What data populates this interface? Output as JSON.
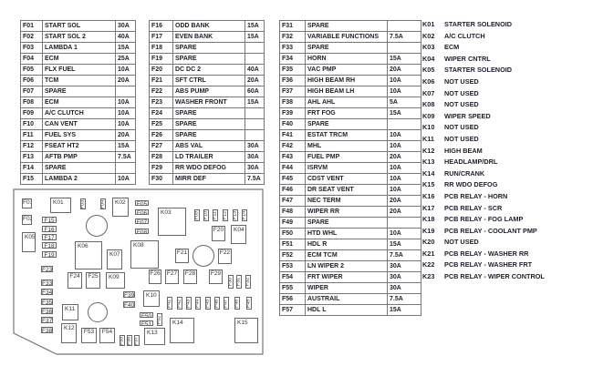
{
  "fuse_tables": [
    [
      [
        "F01",
        "START SOL",
        "30A"
      ],
      [
        "F02",
        "START SOL 2",
        "40A"
      ],
      [
        "F03",
        "LAMBDA 1",
        "15A"
      ],
      [
        "F04",
        "ECM",
        "25A"
      ],
      [
        "F05",
        "FLX FUEL",
        "10A"
      ],
      [
        "F06",
        "TCM",
        "20A"
      ],
      [
        "F07",
        "SPARE",
        ""
      ],
      [
        "F08",
        "ECM",
        "10A"
      ],
      [
        "F09",
        "A/C CLUTCH",
        "10A"
      ],
      [
        "F10",
        "CAN VENT",
        "10A"
      ],
      [
        "F11",
        "FUEL SYS",
        "20A"
      ],
      [
        "F12",
        "FSEAT HT2",
        "15A"
      ],
      [
        "F13",
        "AFTB PMP",
        "7.5A"
      ],
      [
        "F14",
        "SPARE",
        ""
      ],
      [
        "F15",
        "LAMBDA 2",
        "10A"
      ]
    ],
    [
      [
        "F16",
        "ODD BANK",
        "15A"
      ],
      [
        "F17",
        "EVEN BANK",
        "15A"
      ],
      [
        "F18",
        "SPARE",
        ""
      ],
      [
        "F19",
        "SPARE",
        ""
      ],
      [
        "F20",
        "DC DC 2",
        "40A"
      ],
      [
        "F21",
        "SFT CTRL",
        "20A"
      ],
      [
        "F22",
        "ABS PUMP",
        "60A"
      ],
      [
        "F23",
        "WASHER FRONT",
        "15A"
      ],
      [
        "F24",
        "SPARE",
        ""
      ],
      [
        "F25",
        "SPARE",
        ""
      ],
      [
        "F26",
        "SPARE",
        ""
      ],
      [
        "F27",
        "ABS VAL",
        "30A"
      ],
      [
        "F28",
        "LD TRAILER",
        "30A"
      ],
      [
        "F29",
        "RR WDO DEFOG",
        "30A"
      ],
      [
        "F30",
        "MIRR DEF",
        "7.5A"
      ]
    ],
    [
      [
        "F31",
        "SPARE",
        ""
      ],
      [
        "F32",
        "VARIABLE FUNCTIONS",
        "7.5A"
      ],
      [
        "F33",
        "SPARE",
        ""
      ],
      [
        "F34",
        "HORN",
        "15A"
      ],
      [
        "F35",
        "VAC PMP",
        "20A"
      ],
      [
        "F36",
        "HIGH BEAM RH",
        "10A"
      ],
      [
        "F37",
        "HIGH BEAM LH",
        "10A"
      ],
      [
        "F38",
        "AHL AHL",
        "5A"
      ],
      [
        "F39",
        "FRT FOG",
        "15A"
      ],
      [
        "F40",
        "SPARE",
        ""
      ],
      [
        "F41",
        "ESTAT TRCM",
        "10A"
      ],
      [
        "F42",
        "MHL",
        "10A"
      ],
      [
        "F43",
        "FUEL PMP",
        "20A"
      ],
      [
        "F44",
        "ISRVM",
        "10A"
      ],
      [
        "F45",
        "CDST VENT",
        "10A"
      ],
      [
        "F46",
        "DR SEAT VENT",
        "10A"
      ],
      [
        "F47",
        "NEC TERM",
        "20A"
      ],
      [
        "F48",
        "WIPER RR",
        "20A"
      ],
      [
        "F49",
        "SPARE",
        ""
      ],
      [
        "F50",
        "HTD WHL",
        "10A"
      ],
      [
        "F51",
        "HDL R",
        "15A"
      ],
      [
        "F52",
        "ECM TCM",
        "7.5A"
      ],
      [
        "F53",
        "LN WIPER 2",
        "30A"
      ],
      [
        "F54",
        "FRT WIPER",
        "30A"
      ],
      [
        "F55",
        "WIPER",
        "30A"
      ],
      [
        "F56",
        "AUSTRAIL",
        "7.5A"
      ],
      [
        "F57",
        "HDL L",
        "15A"
      ]
    ]
  ],
  "relays": [
    [
      "K01",
      "STARTER SOLENOID"
    ],
    [
      "K02",
      "A/C CLUTCH"
    ],
    [
      "K03",
      "ECM"
    ],
    [
      "K04",
      "WIPER CNTRL"
    ],
    [
      "K05",
      "STARTER SOLENOID"
    ],
    [
      "K06",
      "NOT USED"
    ],
    [
      "K07",
      "NOT USED"
    ],
    [
      "K08",
      "NOT USED"
    ],
    [
      "K09",
      "WIPER SPEED"
    ],
    [
      "K10",
      "NOT USED"
    ],
    [
      "K11",
      "NOT USED"
    ],
    [
      "K12",
      "HIGH BEAM"
    ],
    [
      "K13",
      "HEADLAMP/DRL"
    ],
    [
      "K14",
      "RUN/CRANK"
    ],
    [
      "K15",
      "RR WDO DEFOG"
    ],
    [
      "K16",
      "PCB RELAY - HORN"
    ],
    [
      "K17",
      "PCB RELAY - SCR"
    ],
    [
      "K18",
      "PCB RELAY - FOG LAMP"
    ],
    [
      "K19",
      "PCB RELAY - COOLANT PMP"
    ],
    [
      "K20",
      "NOT USED"
    ],
    [
      "K21",
      "PCB RELAY - WASHER RR"
    ],
    [
      "K22",
      "PCB RELAY - WASHER FRT"
    ],
    [
      "K23",
      "PCB RELAY - WIPER CONTROL"
    ]
  ],
  "diagram": {
    "components": [
      "F01",
      "F02",
      "K05",
      "K01",
      "F03",
      "F04",
      "K02",
      "F15",
      "F16",
      "F17",
      "F18",
      "F19",
      "K06",
      "K07",
      "K08",
      "F23",
      "F24",
      "F25",
      "K09",
      "F33",
      "F34",
      "F35",
      "F36",
      "F37",
      "F38",
      "K11",
      "K12",
      "F53",
      "F54",
      "F39",
      "F40",
      "F55",
      "F56",
      "F57",
      "F05",
      "F06",
      "F07",
      "F08",
      "K03",
      "F09",
      "F10",
      "F11",
      "F12",
      "F13",
      "F14",
      "F20",
      "K04",
      "F21",
      "F22",
      "F26",
      "F27",
      "F28",
      "F29",
      "F30",
      "F31",
      "F32",
      "K10",
      "F41",
      "F42",
      "F43",
      "F44",
      "F45",
      "F46",
      "F47",
      "F48",
      "F49",
      "F50",
      "F51",
      "F52",
      "K13",
      "K14",
      "K15"
    ]
  }
}
